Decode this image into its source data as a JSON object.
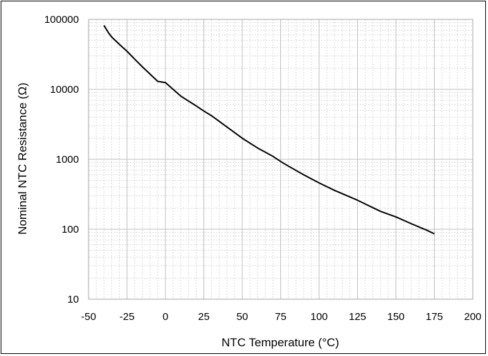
{
  "chart_data": {
    "type": "line",
    "title": "",
    "xlabel": "NTC Temperature (°C)",
    "ylabel": "Nominal NTC Resistance (Ω)",
    "xlim": [
      -50,
      200
    ],
    "ylim": [
      10,
      100000
    ],
    "yscale": "log",
    "xticks": [
      "-50",
      "-25",
      "0",
      "25",
      "50",
      "75",
      "100",
      "125",
      "150",
      "175",
      "200"
    ],
    "yticks": [
      "10",
      "100",
      "1000",
      "10000",
      "100000"
    ],
    "grid": true,
    "legend": "none",
    "line_color": "#000000",
    "series": [
      {
        "x": [
          -40,
          -37,
          -35,
          -30,
          -25,
          -20,
          -15,
          -10,
          -5,
          0,
          10,
          20,
          25,
          30,
          40,
          50,
          60,
          70,
          75,
          80,
          90,
          100,
          110,
          120,
          125,
          130,
          140,
          150,
          160,
          170,
          175
        ],
        "values": [
          82000,
          64000,
          56000,
          44000,
          35000,
          27000,
          21000,
          16500,
          13000,
          12500,
          8000,
          5800,
          4900,
          4200,
          2900,
          2000,
          1450,
          1100,
          930,
          800,
          600,
          460,
          360,
          290,
          260,
          230,
          180,
          150,
          120,
          97,
          86
        ]
      }
    ]
  }
}
